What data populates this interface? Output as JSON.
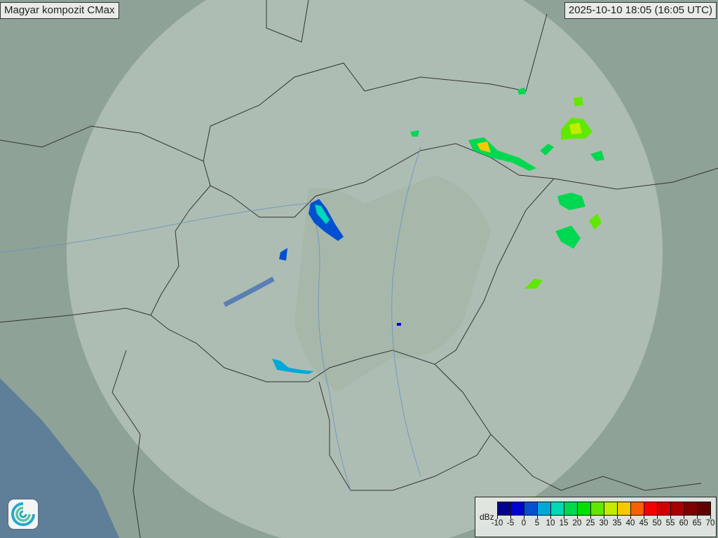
{
  "title": "Magyar kompozit  CMax",
  "timestamp": "2025-10-10 18:05 (16:05 UTC)",
  "legend": {
    "unit": "dBz",
    "labels": [
      "-10",
      "-5",
      "0",
      "5",
      "10",
      "15",
      "20",
      "25",
      "30",
      "35",
      "40",
      "45",
      "50",
      "55",
      "60",
      "65",
      "70"
    ],
    "colors": [
      "#00008f",
      "#0000cf",
      "#0050d0",
      "#00a8d8",
      "#00d8b8",
      "#00d850",
      "#00e000",
      "#60e800",
      "#c0ec00",
      "#f8c800",
      "#f86000",
      "#f80000",
      "#d00000",
      "#a80000",
      "#800000",
      "#600000"
    ]
  },
  "colors": {
    "land": "#8fa297",
    "radar_coverage": "#c9d4cc",
    "sea": "#5f7e98",
    "border": "#333333",
    "river": "#6a8fc0"
  },
  "logo_icon": "weather-service-swirl-icon"
}
